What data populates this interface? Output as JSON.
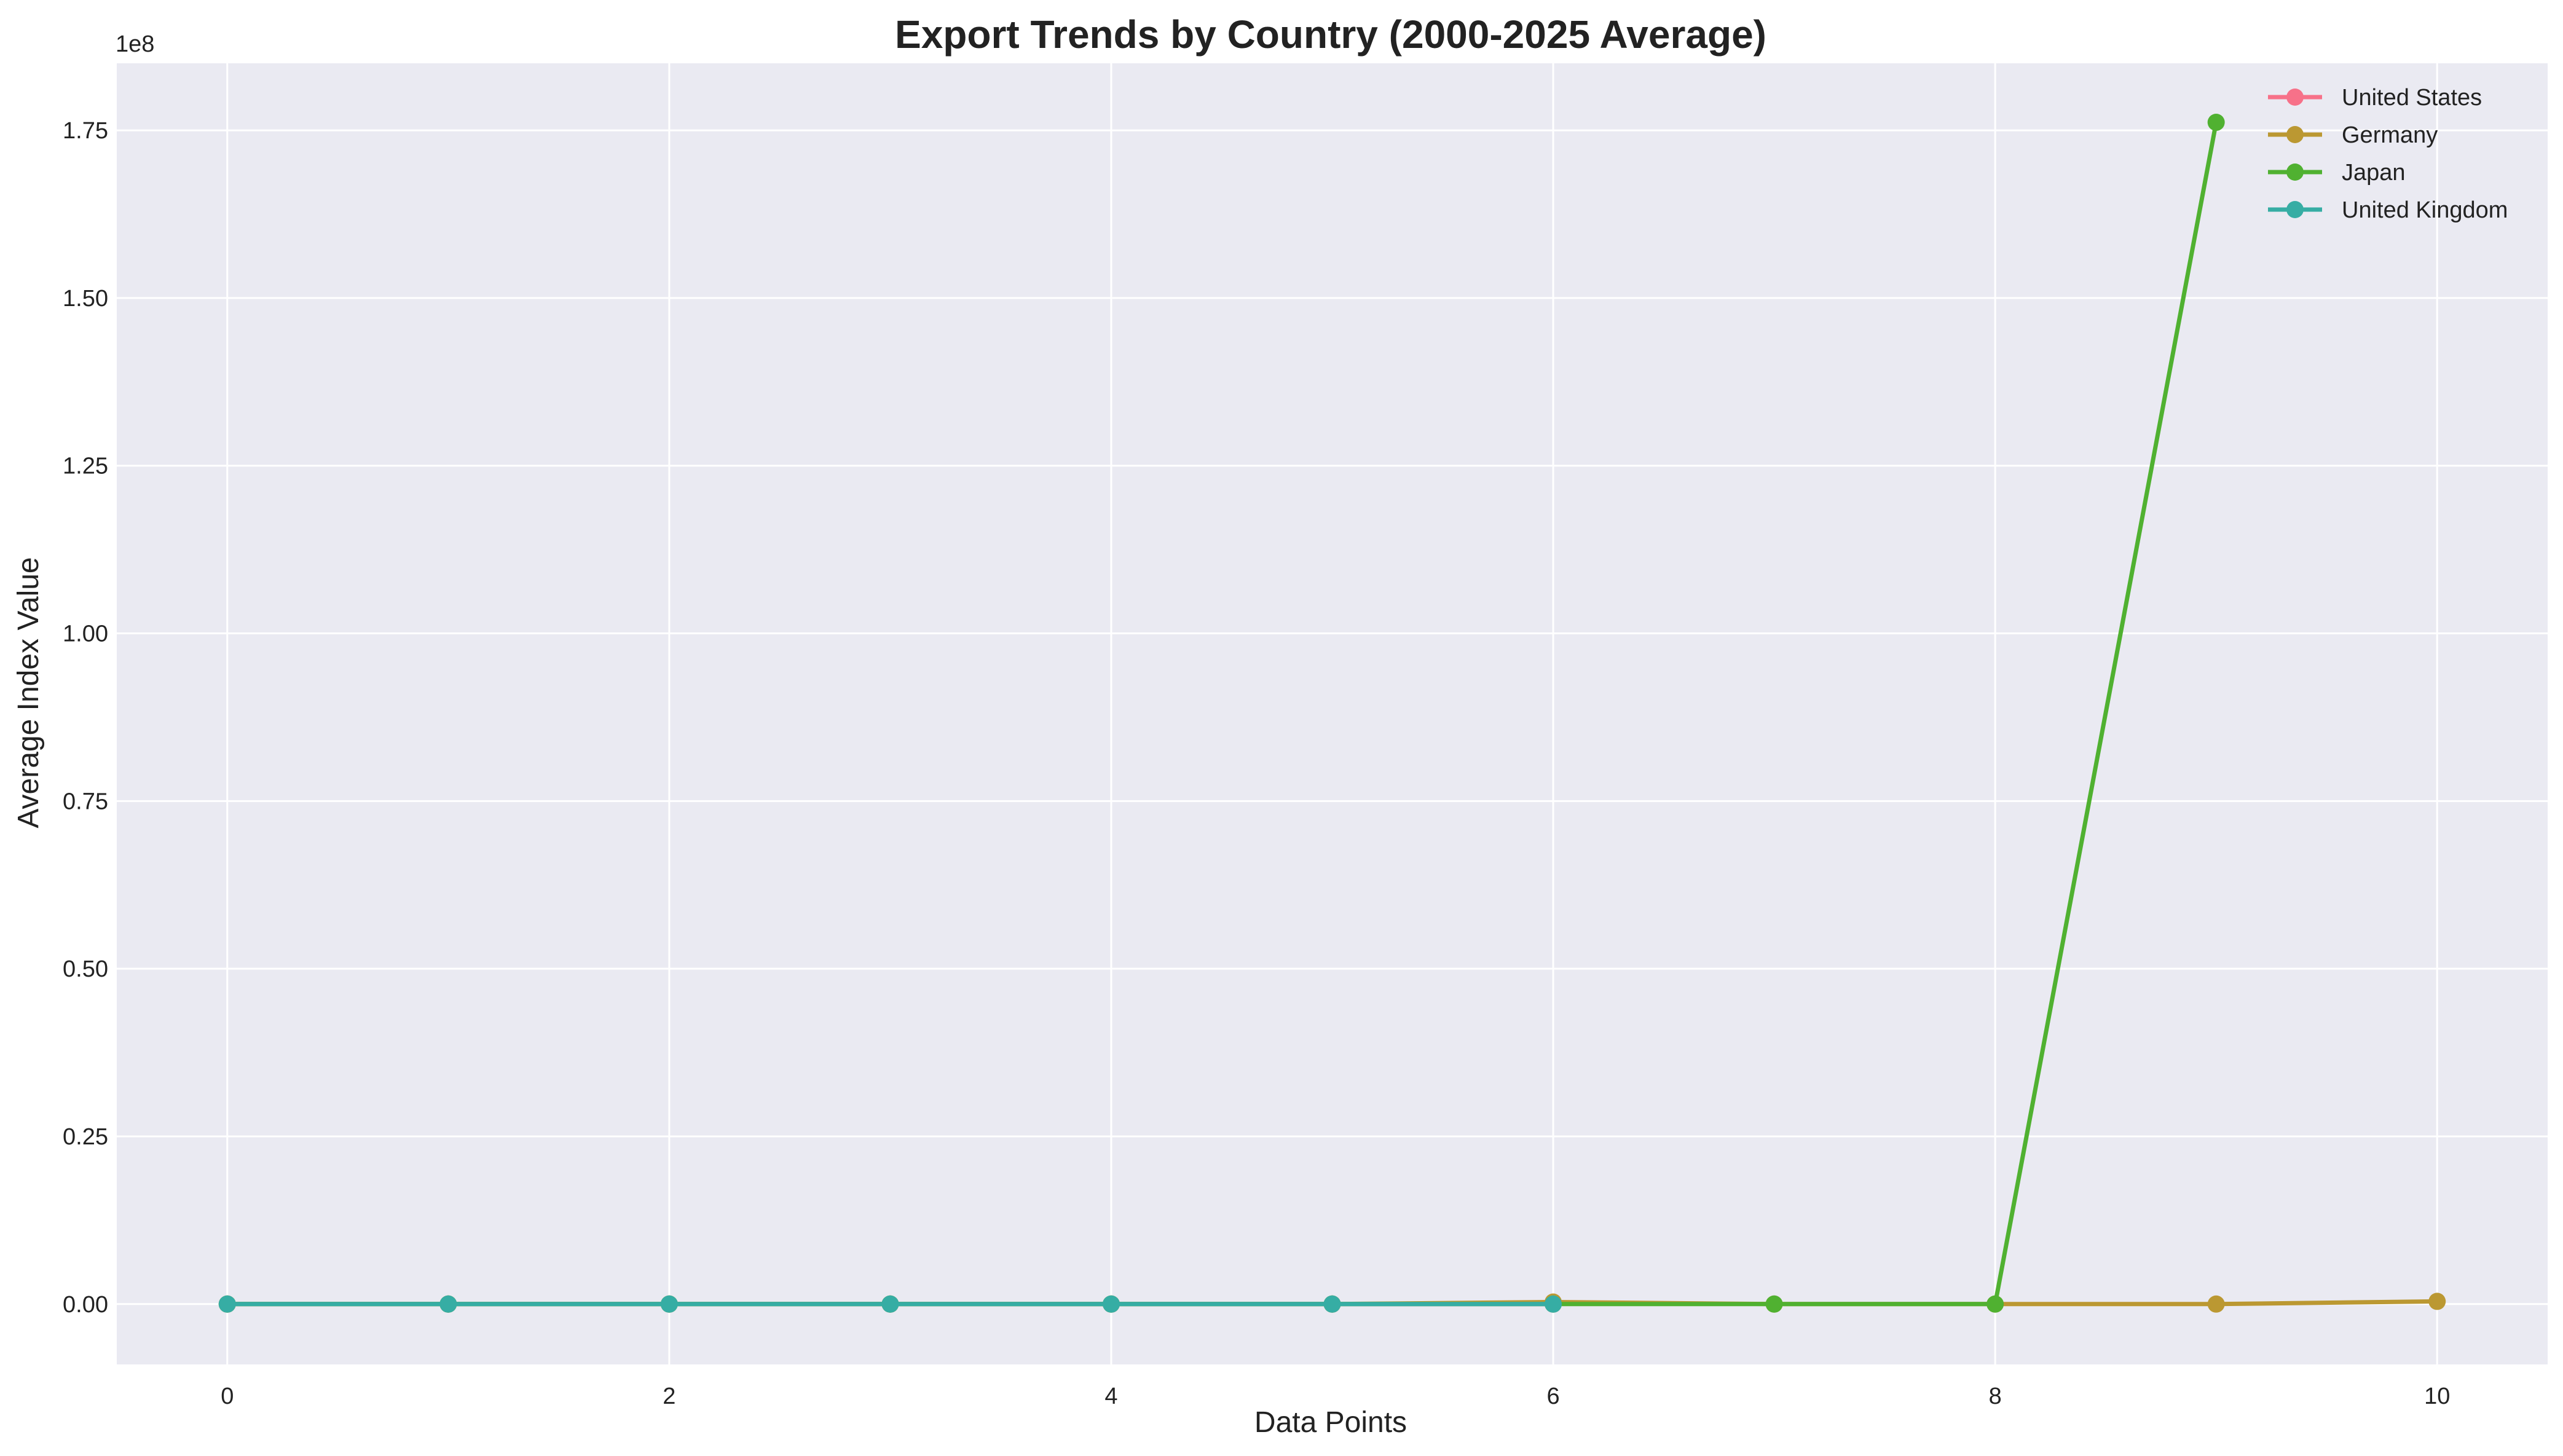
{
  "chart_data": {
    "type": "line",
    "title": "Export Trends by Country (2000-2025 Average)",
    "xlabel": "Data Points",
    "ylabel": "Average Index Value",
    "y_offset_label": "1e8",
    "xlim": [
      -0.5,
      10.5
    ],
    "ylim": [
      -0.09,
      1.85
    ],
    "y_scale_multiplier": 100000000,
    "xticks": [
      0,
      2,
      4,
      6,
      8,
      10
    ],
    "xtick_labels": [
      "0",
      "2",
      "4",
      "6",
      "8",
      "10"
    ],
    "yticks": [
      0.0,
      0.25,
      0.5,
      0.75,
      1.0,
      1.25,
      1.5,
      1.75
    ],
    "ytick_labels": [
      "0.00",
      "0.25",
      "0.50",
      "0.75",
      "1.00",
      "1.25",
      "1.50",
      "1.75"
    ],
    "grid": true,
    "legend_position": "top-right",
    "background_color": "#EAEAF2",
    "grid_color": "#FFFFFF",
    "series": [
      {
        "name": "United States",
        "color": "#F77189",
        "x": [
          0,
          1,
          2,
          3,
          4,
          5,
          6
        ],
        "y": [
          0,
          0,
          0,
          0,
          0,
          0,
          0
        ]
      },
      {
        "name": "Germany",
        "color": "#BB9832",
        "x": [
          0,
          1,
          2,
          3,
          4,
          5,
          6,
          7,
          8,
          9,
          10
        ],
        "y": [
          0,
          0,
          0,
          0,
          0,
          0,
          0.003,
          0,
          0,
          0,
          0.004
        ]
      },
      {
        "name": "Japan",
        "color": "#50B131",
        "x": [
          0,
          1,
          2,
          3,
          4,
          5,
          6,
          7,
          8,
          9
        ],
        "y": [
          0,
          0,
          0,
          0,
          0,
          0,
          0,
          0,
          0,
          1.762
        ]
      },
      {
        "name": "United Kingdom",
        "color": "#36ADA4",
        "x": [
          0,
          1,
          2,
          3,
          4,
          5,
          6
        ],
        "y": [
          0,
          0,
          0,
          0,
          0,
          0,
          0
        ]
      }
    ]
  }
}
